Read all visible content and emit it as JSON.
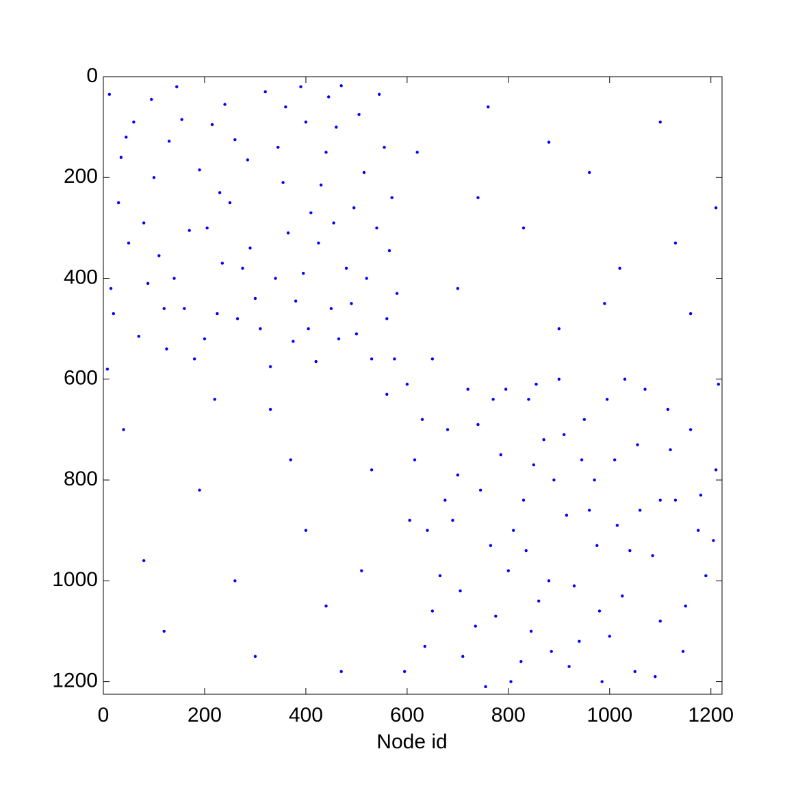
{
  "chart_data": {
    "type": "spy",
    "x_label": "Node id",
    "color": "#0000ff",
    "xlim": [
      0,
      1222
    ],
    "ylim": [
      1225,
      0
    ],
    "xticks": [
      0,
      200,
      400,
      600,
      800,
      1000,
      1200
    ],
    "yticks": [
      0,
      200,
      400,
      600,
      800,
      1000,
      1200
    ],
    "x": [
      12,
      45,
      88,
      130,
      160,
      205,
      240,
      275,
      310,
      355,
      380,
      400,
      425,
      450,
      470,
      495,
      520,
      555,
      575,
      30,
      70,
      110,
      145,
      190,
      225,
      260,
      290,
      330,
      360,
      395,
      440,
      465,
      505,
      540,
      580,
      20,
      60,
      100,
      125,
      170,
      215,
      250,
      300,
      345,
      375,
      410,
      445,
      480,
      515,
      560,
      8,
      50,
      95,
      140,
      180,
      230,
      265,
      320,
      365,
      405,
      430,
      460,
      490,
      530,
      570,
      35,
      80,
      120,
      155,
      200,
      235,
      285,
      340,
      390,
      420,
      455,
      500,
      545,
      565,
      15,
      600,
      640,
      680,
      710,
      745,
      770,
      800,
      830,
      845,
      870,
      900,
      930,
      960,
      985,
      1010,
      1040,
      1070,
      1100,
      1130,
      1160,
      1190,
      1215,
      615,
      650,
      690,
      720,
      755,
      785,
      810,
      840,
      860,
      890,
      920,
      950,
      975,
      1000,
      1030,
      1060,
      1090,
      1120,
      1150,
      1180,
      1205,
      595,
      630,
      665,
      700,
      735,
      765,
      795,
      825,
      850,
      880,
      910,
      940,
      970,
      995,
      1025,
      1055,
      1085,
      1115,
      1145,
      1175,
      1210,
      605,
      635,
      675,
      705,
      740,
      775,
      805,
      835,
      855,
      885,
      915,
      945,
      980,
      1015,
      1050,
      1100,
      620,
      700,
      760,
      830,
      900,
      960,
      1020,
      1100,
      1160,
      1210,
      650,
      740,
      880,
      990,
      1130,
      40,
      120,
      190,
      260,
      330,
      400,
      470,
      530,
      80,
      220,
      300,
      370,
      440,
      510,
      560
    ],
    "values": [
      35,
      120,
      410,
      128,
      460,
      300,
      55,
      380,
      500,
      210,
      445,
      90,
      330,
      460,
      18,
      260,
      400,
      140,
      560,
      250,
      515,
      355,
      20,
      185,
      470,
      125,
      340,
      575,
      60,
      390,
      150,
      520,
      75,
      300,
      430,
      470,
      90,
      200,
      540,
      305,
      95,
      250,
      440,
      140,
      525,
      270,
      40,
      380,
      190,
      480,
      580,
      330,
      45,
      400,
      560,
      230,
      480,
      30,
      310,
      500,
      215,
      100,
      450,
      560,
      240,
      160,
      290,
      460,
      85,
      520,
      370,
      165,
      400,
      20,
      565,
      290,
      510,
      35,
      345,
      420,
      610,
      900,
      700,
      1150,
      820,
      640,
      980,
      840,
      1100,
      720,
      600,
      1010,
      860,
      1200,
      760,
      940,
      620,
      1080,
      840,
      700,
      990,
      610,
      760,
      1060,
      880,
      620,
      1210,
      750,
      900,
      640,
      1040,
      800,
      1170,
      680,
      930,
      1110,
      600,
      860,
      1190,
      740,
      1050,
      830,
      920,
      1180,
      680,
      990,
      790,
      1090,
      930,
      620,
      1160,
      770,
      1000,
      710,
      1120,
      800,
      640,
      1030,
      730,
      950,
      660,
      1140,
      900,
      780,
      880,
      1130,
      840,
      1020,
      690,
      1070,
      1200,
      940,
      610,
      1140,
      870,
      760,
      1060,
      890,
      1180,
      840,
      150,
      420,
      60,
      300,
      500,
      190,
      380,
      90,
      470,
      260,
      560,
      240,
      130,
      450,
      330,
      700,
      1100,
      820,
      1000,
      660,
      900,
      1180,
      780,
      960,
      640,
      1150,
      760,
      1050,
      980,
      630
    ]
  }
}
